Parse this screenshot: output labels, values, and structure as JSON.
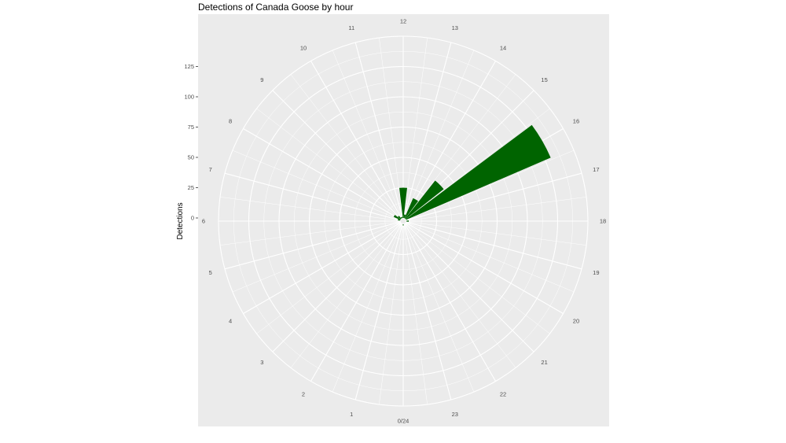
{
  "chart_data": {
    "type": "bar",
    "coordinate_system": "polar",
    "title": "Detections of Canada Goose by hour",
    "xlabel": "",
    "ylabel": "Detections",
    "x_tick_labels": [
      "0/24",
      "1",
      "2",
      "3",
      "4",
      "5",
      "6",
      "7",
      "8",
      "9",
      "10",
      "11",
      "12",
      "13",
      "14",
      "15",
      "16",
      "17",
      "18",
      "19",
      "20",
      "21",
      "22",
      "23"
    ],
    "y_ticks": [
      0,
      25,
      50,
      75,
      100,
      125
    ],
    "y_tick_labels": [
      "0",
      "25",
      "50",
      "75",
      "100",
      "125"
    ],
    "ylim": [
      0,
      150
    ],
    "grid": true,
    "colors": {
      "bar": "#006400",
      "panel": "#ebebeb",
      "grid": "#ffffff"
    },
    "categories": [
      "0",
      "1",
      "2",
      "3",
      "4",
      "5",
      "6",
      "7",
      "8",
      "9",
      "10",
      "11",
      "12",
      "13",
      "14",
      "15",
      "16",
      "17",
      "18",
      "19",
      "20",
      "21",
      "22",
      "23"
    ],
    "values": [
      1,
      0,
      0,
      0,
      0,
      0,
      0,
      2,
      6,
      3,
      1,
      1,
      25,
      3,
      18,
      40,
      130,
      0,
      2,
      0,
      0,
      0,
      0,
      0
    ]
  }
}
